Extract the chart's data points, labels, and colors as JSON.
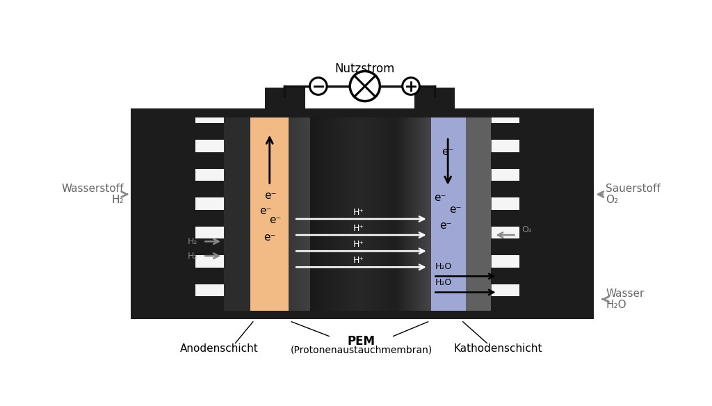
{
  "bg_color": "#ffffff",
  "title": "Nutzstrom",
  "left_label1": "Wasserstoff",
  "left_label2": "H₂",
  "right_label1": "Sauerstoff",
  "right_label2": "O₂",
  "right_label3": "Wasser",
  "right_label4": "H₂O",
  "bottom_label1": "Anodenschicht",
  "bottom_label2": "PEM",
  "bottom_label3": "(Protonenaustauchmembran)",
  "bottom_label4": "Kathodenschicht",
  "anode_color": "#f2bb85",
  "cathode_color": "#9fa8d4",
  "dark_plate": "#1c1c1c",
  "dark_gdl": "#2a2a2a",
  "gray_gdl_r": "#606060",
  "white_channel": "#f5f5f5",
  "wire_color": "#111111"
}
